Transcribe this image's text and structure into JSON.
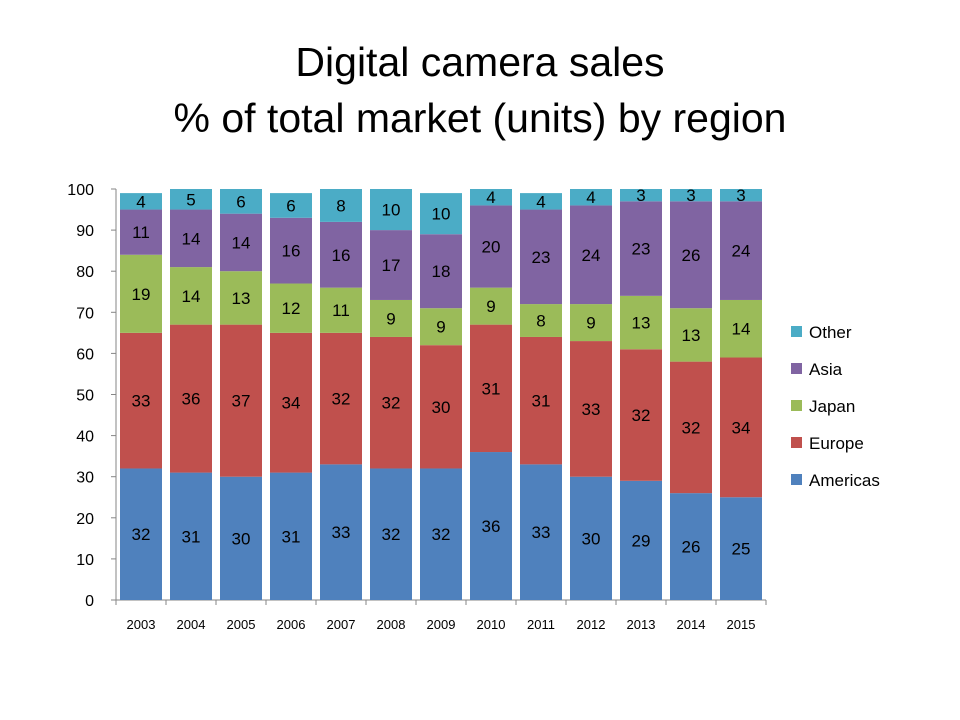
{
  "chart_data": {
    "type": "bar",
    "stacked": true,
    "title": [
      "Digital camera sales",
      "% of total market (units) by region"
    ],
    "xlabel": "",
    "ylabel": "",
    "ylim": [
      0,
      100
    ],
    "yticks": [
      0,
      10,
      20,
      30,
      40,
      50,
      60,
      70,
      80,
      90,
      100
    ],
    "grid": false,
    "legend_position": "right",
    "categories": [
      "2003",
      "2004",
      "2005",
      "2006",
      "2007",
      "2008",
      "2009",
      "2010",
      "2011",
      "2012",
      "2013",
      "2014",
      "2015"
    ],
    "series": [
      {
        "name": "Americas",
        "color": "#4F81BD",
        "values": [
          32,
          31,
          30,
          31,
          33,
          32,
          32,
          36,
          33,
          30,
          29,
          26,
          25
        ]
      },
      {
        "name": "Europe",
        "color": "#C0504D",
        "values": [
          33,
          36,
          37,
          34,
          32,
          32,
          30,
          31,
          31,
          33,
          32,
          32,
          34
        ]
      },
      {
        "name": "Japan",
        "color": "#9BBB59",
        "values": [
          19,
          14,
          13,
          12,
          11,
          9,
          9,
          9,
          8,
          9,
          13,
          13,
          14
        ]
      },
      {
        "name": "Asia",
        "color": "#8064A2",
        "values": [
          11,
          14,
          14,
          16,
          16,
          17,
          18,
          20,
          23,
          24,
          23,
          26,
          24
        ]
      },
      {
        "name": "Other",
        "color": "#4BACC6",
        "values": [
          4,
          5,
          6,
          6,
          8,
          10,
          10,
          4,
          4,
          4,
          3,
          3,
          3
        ]
      }
    ]
  }
}
